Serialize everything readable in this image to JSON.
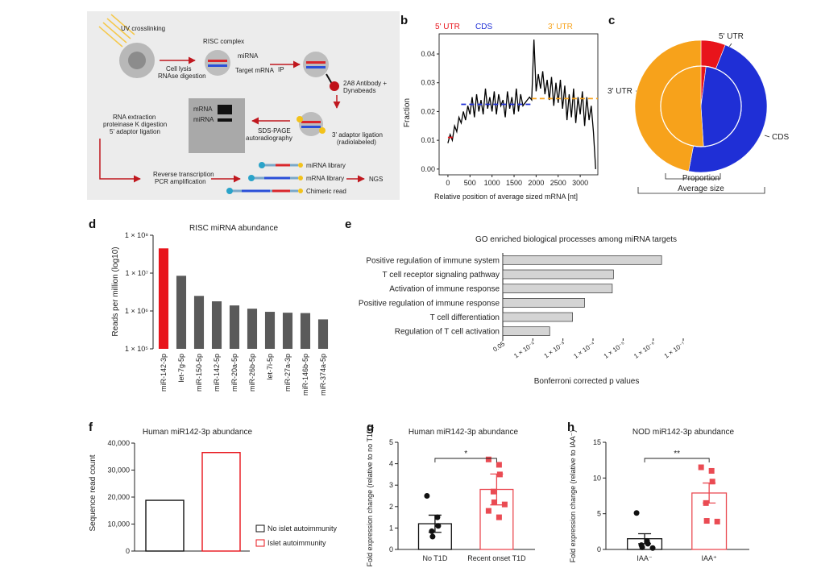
{
  "panel_labels": [
    "a",
    "b",
    "c",
    "d",
    "e",
    "f",
    "g",
    "h"
  ],
  "colors": {
    "red": "#e8141b",
    "blue": "#1f2fd6",
    "orange": "#f7a21b",
    "gray": "#5a5a5a",
    "lightgray": "#d4d4d4",
    "pink": "#ea4b53"
  },
  "schematic": {
    "uv": "UV crosslinking",
    "risc": "RISC complex",
    "lysis": "Cell lysis",
    "rnase": "RNAse digestion",
    "mirna": "miRNA",
    "target": "Target mRNA",
    "ip": "IP",
    "antibody": "2A8 Antibody +",
    "dynabeads": "Dynabeads",
    "rna_extraction": "RNA extraction",
    "proteinase": "proteinase K digestion",
    "adaptor5": "5' adaptor ligation",
    "gel_mrna": "mRNA",
    "gel_mirna": "miRNA",
    "sds": "SDS-PAGE",
    "autorad": "autoradiography",
    "adaptor3": "3' adaptor ligation",
    "radiolabeled": "(radiolabeled)",
    "rt": "Reverse transcription",
    "pcr": "PCR amplification",
    "lib_mirna": "miRNA library",
    "lib_mrna": "mRNA library",
    "lib_chimeric": "Chimeric read",
    "ngs": "NGS"
  },
  "chart_data": [
    {
      "id": "b",
      "type": "line",
      "region_labels": [
        "5' UTR",
        "CDS",
        "3' UTR"
      ],
      "xlabel": "Relative position of average sized mRNA [nt]",
      "ylabel": "Fraction",
      "x_ticks": [
        0,
        500,
        1000,
        1500,
        2000,
        2500,
        3000
      ],
      "y_ticks": [
        0.0,
        0.01,
        0.02,
        0.03,
        0.04
      ],
      "xlim": [
        -200,
        3400
      ],
      "ylim": [
        -0.002,
        0.047
      ],
      "x": [
        0,
        50,
        100,
        150,
        200,
        250,
        300,
        350,
        400,
        450,
        500,
        550,
        600,
        650,
        700,
        750,
        800,
        850,
        900,
        950,
        1000,
        1050,
        1100,
        1150,
        1200,
        1250,
        1300,
        1350,
        1400,
        1450,
        1500,
        1550,
        1600,
        1650,
        1700,
        1750,
        1800,
        1850,
        1900,
        1950,
        2000,
        2050,
        2100,
        2150,
        2200,
        2250,
        2300,
        2350,
        2400,
        2450,
        2500,
        2550,
        2600,
        2650,
        2700,
        2750,
        2800,
        2850,
        2900,
        2950,
        3000,
        3050,
        3100,
        3150,
        3200,
        3250,
        3300,
        3350
      ],
      "y": [
        0.009,
        0.012,
        0.01,
        0.015,
        0.013,
        0.018,
        0.016,
        0.02,
        0.017,
        0.022,
        0.019,
        0.025,
        0.018,
        0.026,
        0.02,
        0.024,
        0.019,
        0.028,
        0.021,
        0.025,
        0.02,
        0.027,
        0.019,
        0.026,
        0.022,
        0.024,
        0.018,
        0.027,
        0.021,
        0.025,
        0.019,
        0.028,
        0.02,
        0.026,
        0.022,
        0.023,
        0.024,
        0.025,
        0.024,
        0.045,
        0.027,
        0.033,
        0.028,
        0.034,
        0.026,
        0.031,
        0.024,
        0.032,
        0.022,
        0.03,
        0.023,
        0.031,
        0.021,
        0.029,
        0.017,
        0.026,
        0.018,
        0.028,
        0.016,
        0.025,
        0.019,
        0.027,
        0.015,
        0.025,
        0.017,
        0.022,
        0.013,
        0.0
      ],
      "mean_segments": [
        {
          "region": "5' UTR",
          "x0": 0,
          "x1": 150,
          "y": 0.011
        },
        {
          "region": "CDS",
          "x0": 300,
          "x1": 1900,
          "y": 0.0225
        },
        {
          "region": "3' UTR",
          "x0": 1900,
          "x1": 3400,
          "y": 0.0245
        }
      ]
    },
    {
      "id": "c",
      "type": "pie",
      "labels": [
        "5' UTR",
        "CDS",
        "3' UTR"
      ],
      "outer_values": [
        6,
        47,
        47
      ],
      "inner_values": [
        2,
        47,
        51
      ],
      "bottom_labels": [
        "Proportion",
        "Average size"
      ]
    },
    {
      "id": "d",
      "type": "bar",
      "title": "RISC miRNA abundance",
      "ylabel": "Reads per million (log10)",
      "y_log": true,
      "y_ticks": [
        "1 × 10⁸",
        "1 × 10⁷",
        "1 × 10⁶",
        "1 × 10⁵"
      ],
      "ylim": [
        100000,
        100000000
      ],
      "categories": [
        "miR-142-3p",
        "let-7g-5p",
        "miR-150-5p",
        "miR-142-5p",
        "miR-20a-5p",
        "miR-26b-5p",
        "let-7i-5p",
        "miR-27a-3p",
        "miR-146b-5p",
        "miR-374a-5p"
      ],
      "values": [
        45000000,
        8500000,
        2500000,
        1800000,
        1400000,
        1150000,
        950000,
        900000,
        880000,
        600000
      ],
      "highlight_index": 0
    },
    {
      "id": "e",
      "type": "bar",
      "orientation": "horizontal",
      "title": "GO enriched biological processes among miRNA targets",
      "xlabel": "Bonferroni corrected p values",
      "x_tick_labels": [
        "0.05",
        "1 × 10⁻²",
        "1 × 10⁻³",
        "1 × 10⁻⁴",
        "1 × 10⁻⁵",
        "1 × 10⁻⁶",
        "1 × 10⁻⁷"
      ],
      "categories": [
        "Positive regulation of immune system",
        "T cell receptor signaling pathway",
        "Activation of immune response",
        "Positive regulation of immune response",
        "T cell differentiation",
        "Regulation of T cell activation"
      ],
      "values_neg_log10_p": [
        6.6,
        4.6,
        4.55,
        3.4,
        2.9,
        1.95
      ]
    },
    {
      "id": "f",
      "type": "bar",
      "title": "Human miR142-3p abundance",
      "ylabel": "Sequence read count",
      "y_ticks": [
        "0",
        "10,000",
        "20,000",
        "30,000",
        "40,000"
      ],
      "ylim": [
        0,
        40000
      ],
      "categories": [
        "No islet autoimmunity",
        "Islet autoimmunity"
      ],
      "values": [
        18800,
        36500
      ],
      "legend": [
        "No islet autoimmunity",
        "Islet autoimmunity"
      ]
    },
    {
      "id": "g",
      "type": "scatter",
      "title": "Human miR142-3p abundance",
      "ylabel": "Fold expression change (relative to no T1D)",
      "y_ticks": [
        "0",
        "1",
        "2",
        "3",
        "4",
        "5"
      ],
      "ylim": [
        0,
        5
      ],
      "categories": [
        "No T1D",
        "Recent onset T1D"
      ],
      "means": [
        1.2,
        2.8
      ],
      "sem": [
        0.4,
        0.72
      ],
      "points": [
        [
          2.5,
          1.5,
          1.1,
          0.85,
          0.6
        ],
        [
          4.2,
          3.95,
          3.5,
          2.7,
          2.2,
          2.1,
          1.8,
          1.5
        ]
      ],
      "significance": "*"
    },
    {
      "id": "h",
      "type": "scatter",
      "title": "NOD miR142-3p abundance",
      "ylabel": "Fold expression change (relative to IAA⁻)",
      "y_ticks": [
        "0",
        "5",
        "10",
        "15"
      ],
      "ylim": [
        0,
        15
      ],
      "categories": [
        "IAA⁻",
        "IAA⁺"
      ],
      "means": [
        1.5,
        7.9
      ],
      "sem": [
        0.7,
        1.4
      ],
      "points": [
        [
          5.1,
          1.2,
          0.8,
          0.6,
          0.3,
          0.2
        ],
        [
          11.5,
          11.0,
          9.5,
          6.5,
          4.0,
          3.9
        ]
      ],
      "significance": "**"
    }
  ]
}
